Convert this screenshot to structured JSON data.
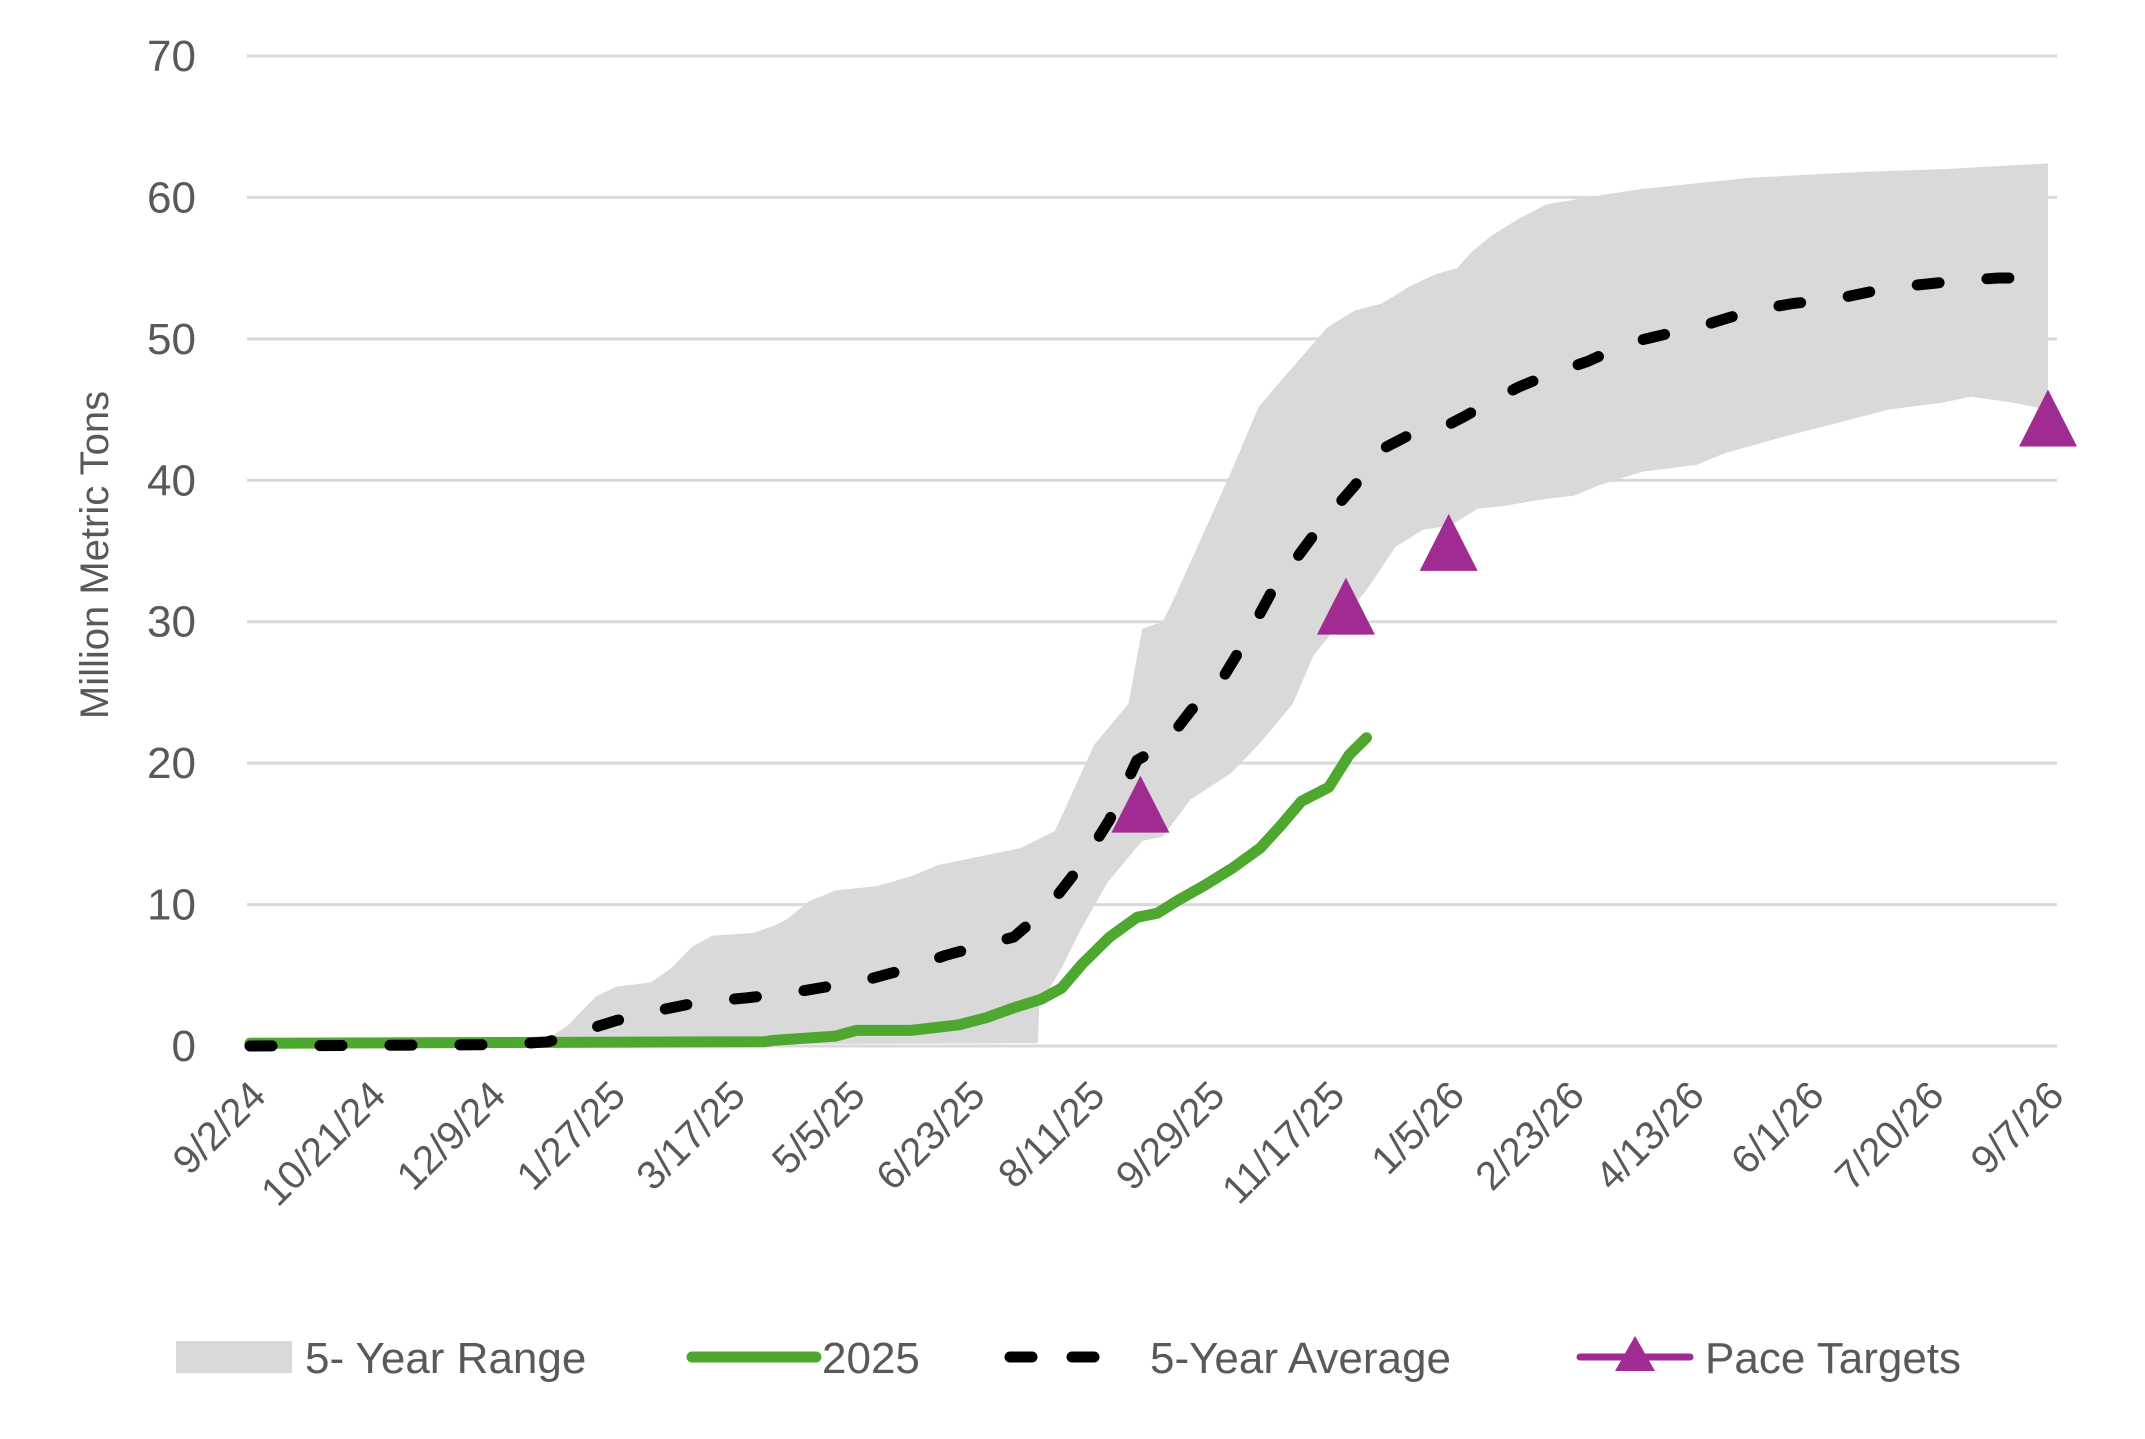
{
  "chart_data": {
    "type": "line",
    "title": "",
    "xlabel": "",
    "ylabel": "Million Metric Tons",
    "ylim": [
      0,
      70
    ],
    "y_ticks": [
      "0",
      "10",
      "20",
      "30",
      "40",
      "50",
      "60",
      "70"
    ],
    "x_unit": "weeks since 9/2/24",
    "xlim": [
      0,
      105
    ],
    "x_ticks": [
      {
        "week": 0,
        "label": "9/2/24"
      },
      {
        "week": 7,
        "label": "10/21/24"
      },
      {
        "week": 14,
        "label": "12/9/24"
      },
      {
        "week": 21,
        "label": "1/27/25"
      },
      {
        "week": 28,
        "label": "3/17/25"
      },
      {
        "week": 35,
        "label": "5/5/25"
      },
      {
        "week": 42,
        "label": "6/23/25"
      },
      {
        "week": 49,
        "label": "8/11/25"
      },
      {
        "week": 56,
        "label": "9/29/25"
      },
      {
        "week": 63,
        "label": "11/17/25"
      },
      {
        "week": 70,
        "label": "1/5/26"
      },
      {
        "week": 77,
        "label": "2/23/26"
      },
      {
        "week": 84,
        "label": "4/13/26"
      },
      {
        "week": 91,
        "label": "6/1/26"
      },
      {
        "week": 98,
        "label": "7/20/26"
      },
      {
        "week": 105,
        "label": "9/7/26"
      }
    ],
    "grid": true,
    "legend_position": "bottom",
    "series": [
      {
        "name": "5- Year Range",
        "kind": "band",
        "color": "#d9d9d9",
        "upper": [
          [
            0,
            0.2
          ],
          [
            10,
            0.2
          ],
          [
            17.4,
            0.5
          ],
          [
            18.6,
            1.5
          ],
          [
            20.2,
            3.5
          ],
          [
            21.4,
            4.2
          ],
          [
            23.4,
            4.5
          ],
          [
            24.6,
            5.5
          ],
          [
            25.8,
            7
          ],
          [
            27,
            7.8
          ],
          [
            29.4,
            8
          ],
          [
            30.6,
            8.5
          ],
          [
            31.4,
            9
          ],
          [
            32.6,
            10.2
          ],
          [
            34.2,
            11
          ],
          [
            36.6,
            11.3
          ],
          [
            38.6,
            12
          ],
          [
            40.2,
            12.8
          ],
          [
            43,
            13.5
          ],
          [
            45,
            14
          ],
          [
            47,
            15.2
          ],
          [
            49.3,
            21.3
          ],
          [
            51.3,
            24.2
          ],
          [
            52.1,
            29.5
          ],
          [
            53.3,
            30
          ],
          [
            54.1,
            32
          ],
          [
            55.7,
            36.3
          ],
          [
            57.3,
            40.6
          ],
          [
            58.9,
            45.2
          ],
          [
            60.9,
            48
          ],
          [
            62.9,
            50.8
          ],
          [
            64.5,
            52
          ],
          [
            66.1,
            52.5
          ],
          [
            67.7,
            53.7
          ],
          [
            69.3,
            54.6
          ],
          [
            70.5,
            55
          ],
          [
            71.3,
            56.1
          ],
          [
            72.5,
            57.3
          ],
          [
            74.1,
            58.5
          ],
          [
            75.7,
            59.5
          ],
          [
            78.1,
            60
          ],
          [
            81.3,
            60.6
          ],
          [
            84.5,
            61
          ],
          [
            87.7,
            61.4
          ],
          [
            90.9,
            61.6
          ],
          [
            94.1,
            61.8
          ],
          [
            98.9,
            62
          ],
          [
            105,
            62.4
          ]
        ],
        "lower": [
          [
            0,
            0
          ],
          [
            46,
            0.2
          ],
          [
            46.1,
            2.9
          ],
          [
            47.3,
            5.3
          ],
          [
            48.5,
            8.2
          ],
          [
            50.1,
            11.6
          ],
          [
            52.1,
            14.5
          ],
          [
            53.3,
            14.8
          ],
          [
            54.9,
            17.4
          ],
          [
            57.3,
            19.3
          ],
          [
            58.9,
            21.3
          ],
          [
            60.9,
            24.2
          ],
          [
            62.1,
            27.6
          ],
          [
            63.7,
            30
          ],
          [
            65.3,
            32.4
          ],
          [
            66.9,
            35.3
          ],
          [
            68.5,
            36.5
          ],
          [
            70.1,
            36.8
          ],
          [
            71.7,
            38
          ],
          [
            73.3,
            38.2
          ],
          [
            75.7,
            38.7
          ],
          [
            77.3,
            38.9
          ],
          [
            78.9,
            39.7
          ],
          [
            81.3,
            40.6
          ],
          [
            84.5,
            41.1
          ],
          [
            86.1,
            41.9
          ],
          [
            89.3,
            43
          ],
          [
            92.5,
            44
          ],
          [
            95.7,
            45
          ],
          [
            98.9,
            45.5
          ],
          [
            100.5,
            45.9
          ],
          [
            102.9,
            45.5
          ],
          [
            105,
            45
          ]
        ]
      },
      {
        "name": "2025",
        "kind": "line",
        "color": "#4ea72e",
        "points": [
          [
            0,
            0.2
          ],
          [
            30,
            0.3
          ],
          [
            30.6,
            0.4
          ],
          [
            34.2,
            0.7
          ],
          [
            35.4,
            1.1
          ],
          [
            38.6,
            1.1
          ],
          [
            41.4,
            1.5
          ],
          [
            43,
            2
          ],
          [
            44.6,
            2.7
          ],
          [
            46.2,
            3.3
          ],
          [
            47.4,
            4.1
          ],
          [
            48.6,
            5.8
          ],
          [
            50.2,
            7.7
          ],
          [
            51.8,
            9.1
          ],
          [
            53,
            9.4
          ],
          [
            54.2,
            10.3
          ],
          [
            55.8,
            11.4
          ],
          [
            57.4,
            12.6
          ],
          [
            59,
            14
          ],
          [
            60.2,
            15.6
          ],
          [
            61.4,
            17.3
          ],
          [
            63,
            18.3
          ],
          [
            64.2,
            20.6
          ],
          [
            65.2,
            21.8
          ]
        ]
      },
      {
        "name": "5-Year Average",
        "kind": "dashed-line",
        "color": "#000000",
        "points": [
          [
            0,
            0
          ],
          [
            15,
            0.1
          ],
          [
            17.4,
            0.3
          ],
          [
            19,
            0.9
          ],
          [
            21.4,
            1.8
          ],
          [
            23.8,
            2.5
          ],
          [
            26.2,
            3.1
          ],
          [
            29,
            3.4
          ],
          [
            31.8,
            3.8
          ],
          [
            34.2,
            4.3
          ],
          [
            35.8,
            4.6
          ],
          [
            38.2,
            5.4
          ],
          [
            40.6,
            6.4
          ],
          [
            43,
            7.2
          ],
          [
            44.6,
            7.7
          ],
          [
            46.6,
            9.8
          ],
          [
            48.6,
            12.9
          ],
          [
            50.2,
            16
          ],
          [
            51.8,
            20.2
          ],
          [
            53.4,
            21.3
          ],
          [
            55,
            23.8
          ],
          [
            56.6,
            25.6
          ],
          [
            58.1,
            28.6
          ],
          [
            59.7,
            32.2
          ],
          [
            61.3,
            34.8
          ],
          [
            62.9,
            37.4
          ],
          [
            64.5,
            39.6
          ],
          [
            66.1,
            42.2
          ],
          [
            67.7,
            43.2
          ],
          [
            69.3,
            43.5
          ],
          [
            70.9,
            44.5
          ],
          [
            72.5,
            45.6
          ],
          [
            74.1,
            46.6
          ],
          [
            75.7,
            47.4
          ],
          [
            78.1,
            48.4
          ],
          [
            80.5,
            49.7
          ],
          [
            82.9,
            50.4
          ],
          [
            85.3,
            51.1
          ],
          [
            87.7,
            52
          ],
          [
            90.1,
            52.5
          ],
          [
            92.5,
            52.8
          ],
          [
            94.9,
            53.4
          ],
          [
            97.3,
            53.8
          ],
          [
            99.7,
            54.1
          ],
          [
            102.1,
            54.3
          ],
          [
            103.6,
            54.3
          ]
        ]
      },
      {
        "name": "Pace Targets",
        "kind": "markers",
        "marker": "triangle",
        "color": "#a02b93",
        "points": [
          [
            52,
            17
          ],
          [
            64,
            31
          ],
          [
            70,
            35.5
          ],
          [
            105,
            44.3
          ]
        ]
      }
    ],
    "legend": [
      "5- Year Range",
      "2025",
      "5-Year Average",
      "Pace Targets"
    ]
  }
}
